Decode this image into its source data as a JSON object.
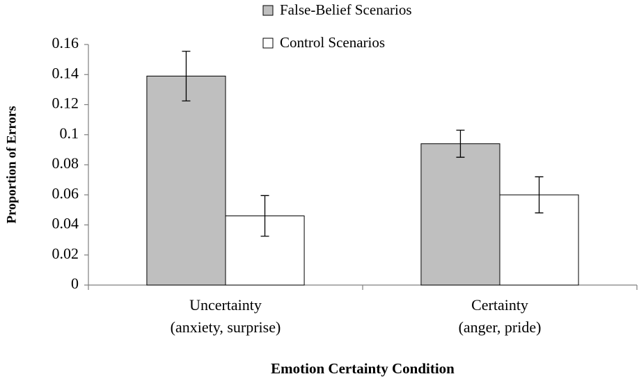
{
  "chart_data": {
    "type": "bar",
    "xlabel": "Emotion Certainty Condition",
    "ylabel": "Proportion of Errors",
    "categories": [
      [
        "Uncertainty",
        "(anxiety, surprise)"
      ],
      [
        "Certainty",
        "(anger, pride)"
      ]
    ],
    "series": [
      {
        "name": "False-Belief Scenarios",
        "color": "#bfbfbf",
        "values": [
          0.139,
          0.094
        ],
        "errors": [
          0.0165,
          0.009
        ]
      },
      {
        "name": "Control Scenarios",
        "color": "#ffffff",
        "values": [
          0.046,
          0.06
        ],
        "errors": [
          0.0135,
          0.012
        ]
      }
    ],
    "ylim": [
      0,
      0.16
    ],
    "yticks": [
      0,
      0.02,
      0.04,
      0.06,
      0.08,
      0.1,
      0.12,
      0.14,
      0.16
    ],
    "grid": false,
    "legend": "top"
  }
}
